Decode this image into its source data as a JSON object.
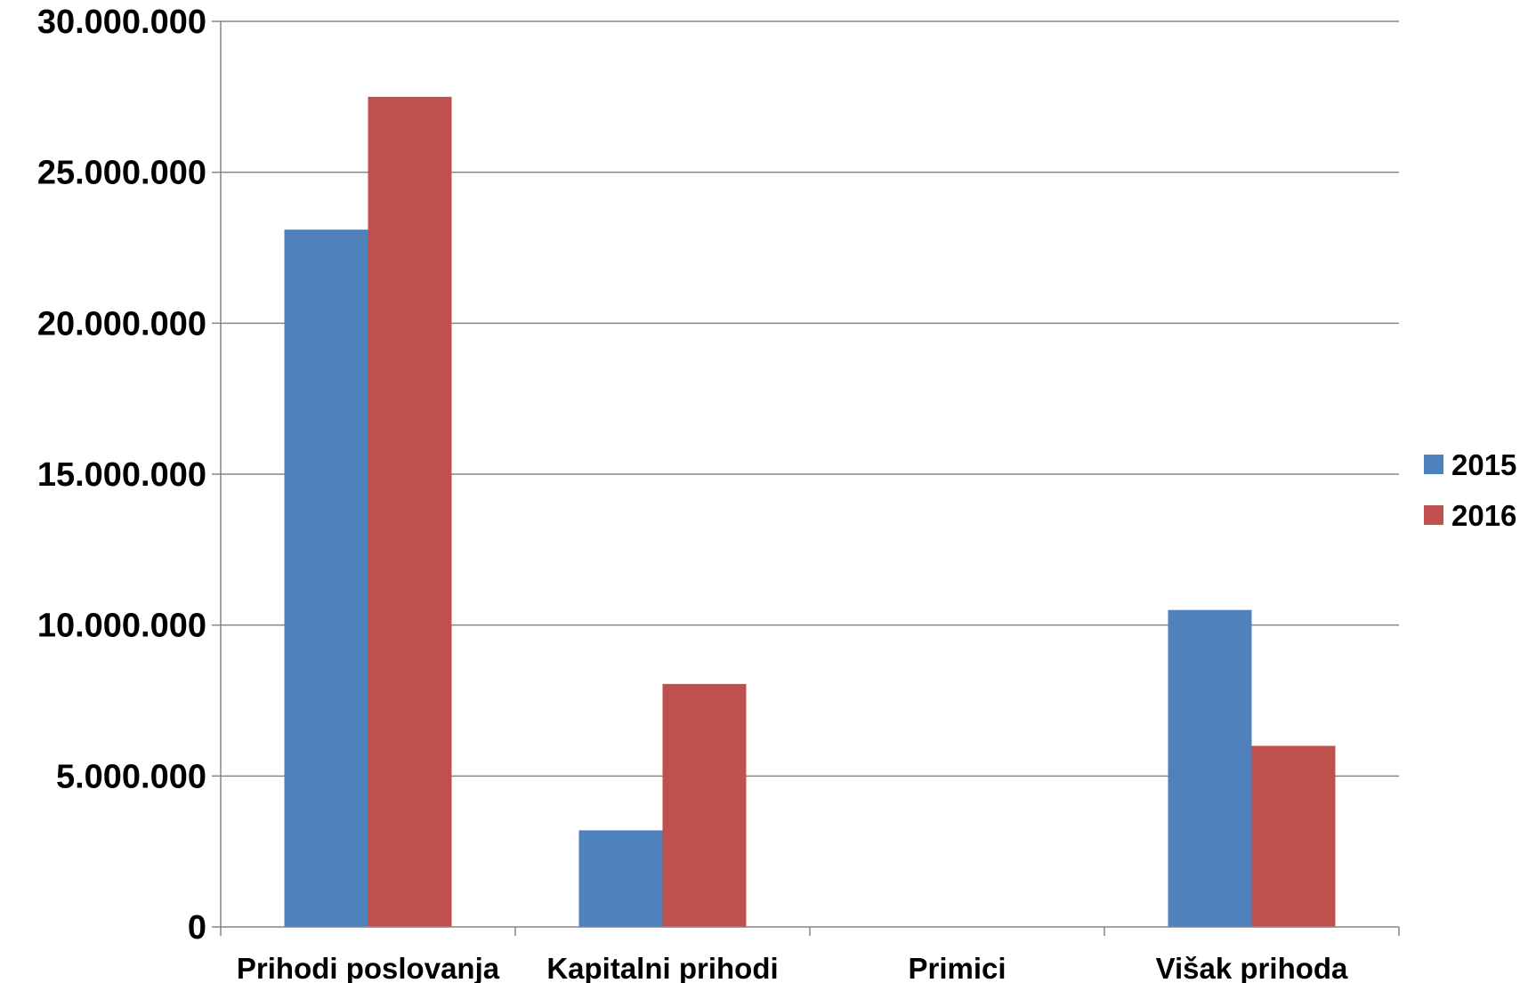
{
  "chart_data": {
    "type": "bar",
    "categories": [
      "Prihodi poslovanja",
      "Kapitalni prihodi",
      "Primici",
      "Višak prihoda"
    ],
    "series": [
      {
        "name": "2015",
        "color": "#4F81BD",
        "values": [
          23100000,
          3200000,
          0,
          10500000
        ]
      },
      {
        "name": "2016",
        "color": "#C0504D",
        "values": [
          27500000,
          8050000,
          0,
          6000000
        ]
      }
    ],
    "ylim": [
      0,
      30000000
    ],
    "yticks": [
      0,
      5000000,
      10000000,
      15000000,
      20000000,
      25000000,
      30000000
    ],
    "ytick_labels": [
      "0",
      "5.000.000",
      "10.000.000",
      "15.000.000",
      "20.000.000",
      "25.000.000",
      "30.000.000"
    ],
    "grid": true,
    "legend_position": "right"
  }
}
